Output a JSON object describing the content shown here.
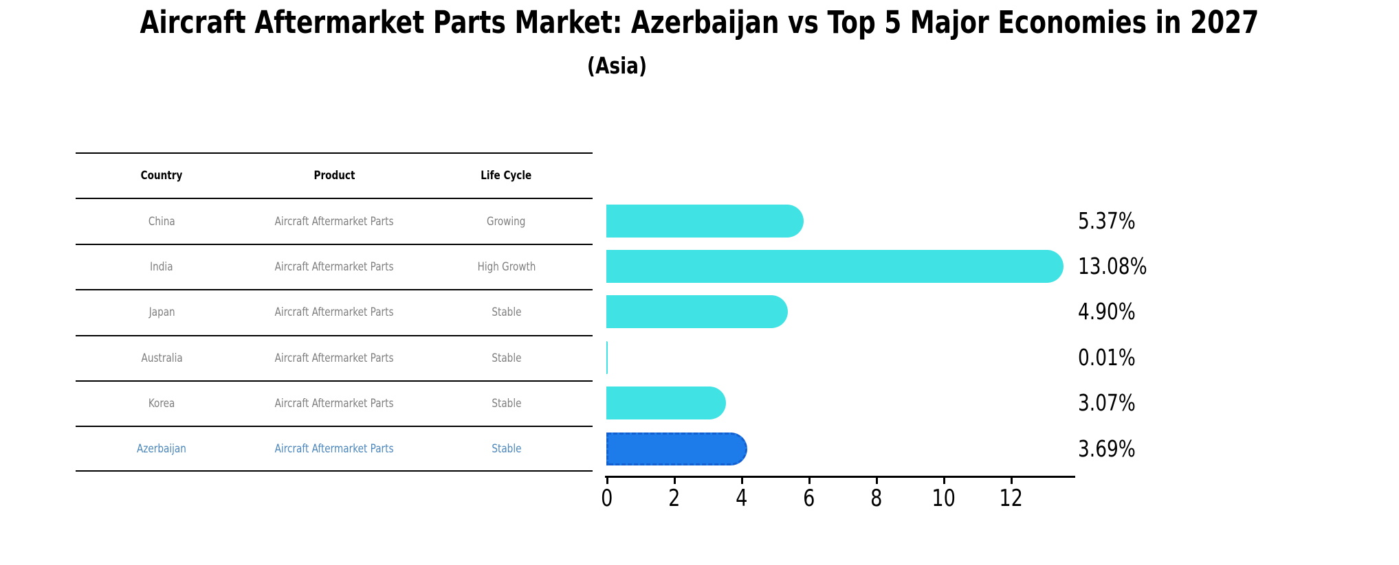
{
  "title": "Aircraft Aftermarket Parts Market: Azerbaijan vs Top 5 Major Economies in 2027",
  "subtitle": "(Asia)",
  "table": {
    "headers": [
      "Country",
      "Product",
      "Life Cycle"
    ],
    "rows": [
      {
        "country": "China",
        "product": "Aircraft Aftermarket Parts",
        "life_cycle": "Growing"
      },
      {
        "country": "India",
        "product": "Aircraft Aftermarket Parts",
        "life_cycle": "High Growth"
      },
      {
        "country": "Japan",
        "product": "Aircraft Aftermarket Parts",
        "life_cycle": "Stable"
      },
      {
        "country": "Australia",
        "product": "Aircraft Aftermarket Parts",
        "life_cycle": "Stable"
      },
      {
        "country": "Korea",
        "product": "Aircraft Aftermarket Parts",
        "life_cycle": "Stable"
      },
      {
        "country": "Azerbaijan",
        "product": "Aircraft Aftermarket Parts",
        "life_cycle": "Stable"
      }
    ],
    "highlight_row": "Azerbaijan"
  },
  "chart_data": {
    "type": "bar",
    "orientation": "horizontal",
    "title": "Aircraft Aftermarket Parts Market: Azerbaijan vs Top 5 Major Economies in 2027 (Asia)",
    "categories": [
      "China",
      "India",
      "Japan",
      "Australia",
      "Korea",
      "Azerbaijan"
    ],
    "values": [
      5.37,
      13.08,
      4.9,
      0.01,
      3.07,
      3.69
    ],
    "bar_labels": [
      "5.37%",
      "13.08%",
      "4.90%",
      "0.01%",
      "3.07%",
      "3.69%"
    ],
    "xticks": [
      0,
      2,
      4,
      6,
      8,
      10,
      12
    ],
    "xlim": [
      0,
      13.9
    ],
    "grid": false,
    "legend": false,
    "bar_color": "#40E2E4",
    "highlight_index": 5,
    "highlight_color": "#1E7CEA",
    "highlight_edge_color": "#145FD0",
    "value_label_color": "#000000"
  },
  "colors": {
    "background": "#ffffff",
    "table_text": "#7e7e7e",
    "table_header_text": "#000000",
    "highlight_text": "#4a86bb",
    "axis": "#000000"
  }
}
